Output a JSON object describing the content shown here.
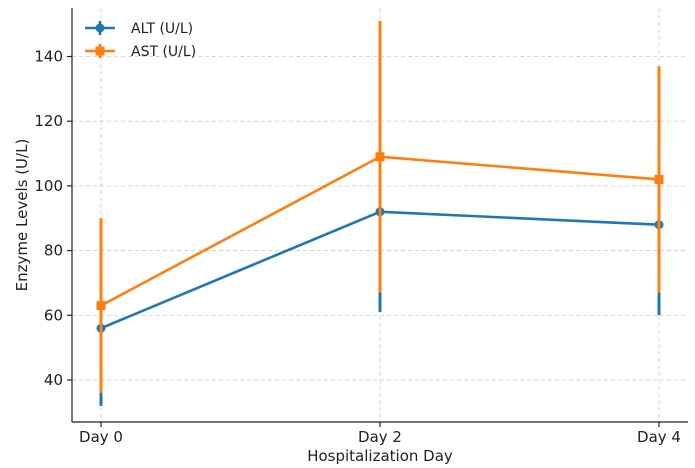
{
  "chart_data": {
    "type": "line",
    "title": "",
    "xlabel": "Hospitalization Day",
    "ylabel": "Enzyme Levels (U/L)",
    "categories": [
      "Day 0",
      "Day 2",
      "Day 4"
    ],
    "x": [
      0,
      2,
      4
    ],
    "ylim": [
      27,
      155
    ],
    "yticks": [
      40,
      60,
      80,
      100,
      120,
      140
    ],
    "grid": true,
    "legend_position": "top-left",
    "series": [
      {
        "name": "ALT (U/L)",
        "color": "#1f77b4",
        "marker": "circle",
        "values": [
          56,
          92,
          88
        ],
        "error_low": [
          32,
          61,
          60
        ],
        "error_high": [
          80,
          123,
          116
        ]
      },
      {
        "name": "AST (U/L)",
        "color": "#ff7f0e",
        "marker": "square",
        "values": [
          63,
          109,
          102
        ],
        "error_low": [
          36,
          67,
          67
        ],
        "error_high": [
          90,
          151,
          137
        ]
      }
    ]
  }
}
